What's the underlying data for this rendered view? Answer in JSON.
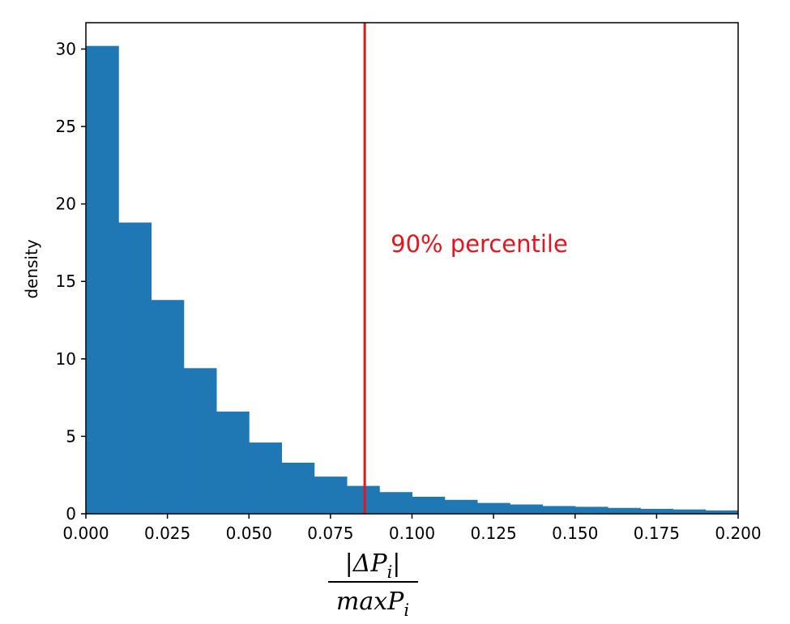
{
  "chart_data": {
    "type": "bar",
    "subtype": "histogram",
    "bin_edges": [
      0.0,
      0.01,
      0.02,
      0.03,
      0.04,
      0.05,
      0.06,
      0.07,
      0.08,
      0.09,
      0.1,
      0.11,
      0.12,
      0.13,
      0.14,
      0.15,
      0.16,
      0.17,
      0.18,
      0.19,
      0.2
    ],
    "values": [
      30.2,
      18.8,
      13.8,
      9.4,
      6.6,
      4.6,
      3.3,
      2.4,
      1.8,
      1.4,
      1.1,
      0.9,
      0.7,
      0.6,
      0.5,
      0.45,
      0.38,
      0.32,
      0.28,
      0.22
    ],
    "bar_color": "#1f77b4",
    "xlim": [
      0.0,
      0.2
    ],
    "ylim": [
      0,
      31.7
    ],
    "x_ticks": [
      "0.000",
      "0.025",
      "0.050",
      "0.075",
      "0.100",
      "0.125",
      "0.150",
      "0.175",
      "0.200"
    ],
    "y_ticks": [
      "0",
      "5",
      "10",
      "15",
      "20",
      "25",
      "30"
    ],
    "ylabel": "density",
    "xlabel": {
      "numerator": "|ΔP",
      "numerator_sub": "i",
      "numerator_end": "|",
      "denominator": "maxP",
      "denominator_sub": "i"
    },
    "percentile_line": {
      "x": 0.0855,
      "color": "#e8141c",
      "label": "90% percentile"
    },
    "grid": false
  }
}
